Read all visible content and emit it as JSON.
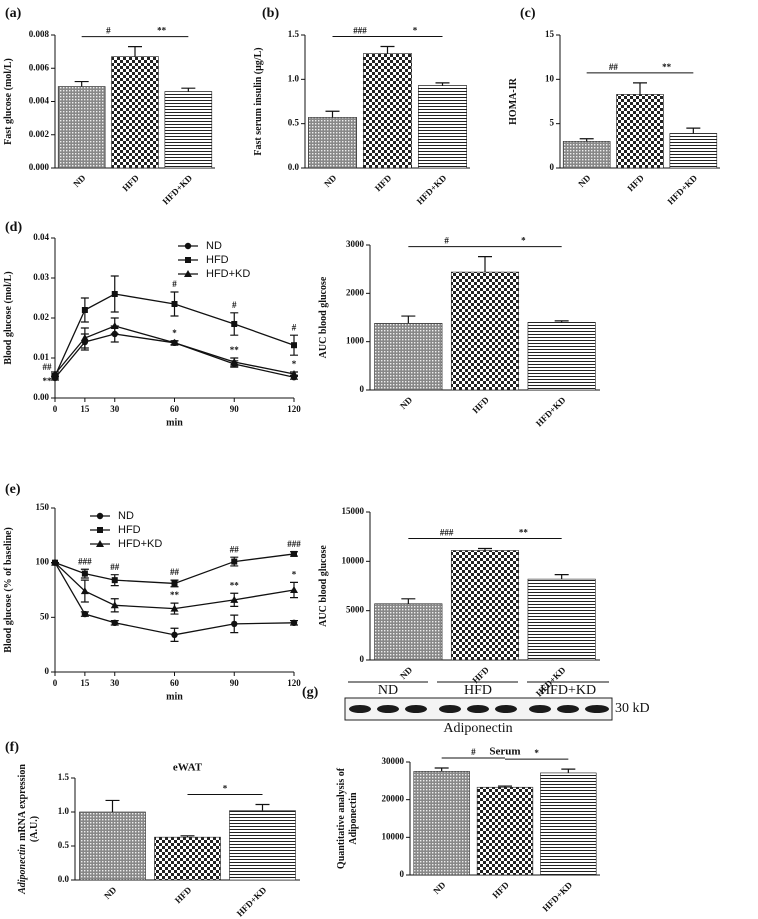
{
  "bar_patterns": [
    "grid",
    "checker",
    "hlines"
  ],
  "blot": {
    "panel": "(g)",
    "groups": [
      "ND",
      "HFD",
      "HFD+KD"
    ],
    "protein": "Adiponectin",
    "size": "30 kD"
  },
  "chart_data": [
    {
      "type": "bar",
      "panel": "(a)",
      "ylabel": [
        "Fast glucose (mol/L)"
      ],
      "categories": [
        "ND",
        "HFD",
        "HFD+KD"
      ],
      "values": [
        0.0049,
        0.0067,
        0.0046
      ],
      "errors": [
        0.0003,
        0.0006,
        0.0002
      ],
      "ylim": [
        0,
        0.008
      ],
      "yticks": [
        {
          "value": 0,
          "label": "0.000"
        },
        {
          "value": 0.002,
          "label": "0.002"
        },
        {
          "value": 0.004,
          "label": "0.004"
        },
        {
          "value": 0.006,
          "label": "0.006"
        },
        {
          "value": 0.008,
          "label": "0.008"
        }
      ],
      "significance": [
        {
          "label": "#",
          "pair": [
            0,
            1
          ]
        },
        {
          "label": "**",
          "pair": [
            1,
            2
          ]
        }
      ]
    },
    {
      "type": "bar",
      "panel": "(b)",
      "ylabel": [
        "Fast serum insulin (μg/L)"
      ],
      "categories": [
        "ND",
        "HFD",
        "HFD+KD"
      ],
      "values": [
        0.57,
        1.29,
        0.93
      ],
      "errors": [
        0.07,
        0.08,
        0.03
      ],
      "ylim": [
        0,
        1.5
      ],
      "yticks": [
        {
          "value": 0,
          "label": "0.0"
        },
        0.5,
        {
          "value": 1,
          "label": "1.0"
        },
        1.5
      ],
      "significance": [
        {
          "label": "###",
          "pair": [
            0,
            1
          ]
        },
        {
          "label": "*",
          "pair": [
            1,
            2
          ]
        }
      ]
    },
    {
      "type": "bar",
      "panel": "(c)",
      "ylabel": [
        "HOMA-IR"
      ],
      "categories": [
        "ND",
        "HFD",
        "HFD+KD"
      ],
      "values": [
        3.0,
        8.3,
        3.9
      ],
      "errors": [
        0.3,
        1.3,
        0.6
      ],
      "ylim": [
        0,
        15
      ],
      "yticks": [
        0,
        5,
        10,
        15
      ],
      "significance": [
        {
          "label": "##",
          "pair": [
            0,
            1
          ]
        },
        {
          "label": "**",
          "pair": [
            1,
            2
          ]
        }
      ]
    },
    {
      "type": "line",
      "panel": "(d)",
      "ylabel": [
        "Blood glucose (mol/L)"
      ],
      "xlabel": "min",
      "x": [
        0,
        15,
        30,
        60,
        90,
        120
      ],
      "xlim": [
        0,
        120
      ],
      "xticks": [
        0,
        15,
        30,
        60,
        90,
        120
      ],
      "ylim": [
        0,
        0.04
      ],
      "yticks": [
        {
          "value": 0,
          "label": "0.00"
        },
        0.01,
        0.02,
        0.03,
        0.04
      ],
      "legend": "upper right",
      "series": [
        {
          "name": "ND",
          "marker": "circle",
          "color": "#111111",
          "values": [
            0.005,
            0.014,
            0.016,
            0.0138,
            0.0085,
            0.0052
          ],
          "errors": [
            0.0005,
            0.002,
            0.002,
            0.0005,
            0.0008,
            0.0005
          ]
        },
        {
          "name": "HFD",
          "marker": "square",
          "color": "#111111",
          "values": [
            0.0055,
            0.022,
            0.026,
            0.0235,
            0.0185,
            0.0132
          ],
          "errors": [
            0.0005,
            0.003,
            0.0045,
            0.003,
            0.0028,
            0.0025
          ]
        },
        {
          "name": "HFD+KD",
          "marker": "triangle",
          "color": "#111111",
          "values": [
            0.006,
            0.015,
            0.018,
            0.0138,
            0.009,
            0.006
          ],
          "errors": [
            0.0005,
            0.0025,
            0.002,
            0.0005,
            0.001,
            0.0005
          ]
        }
      ],
      "annotations": [
        {
          "label": "##",
          "at": 0,
          "series": 1
        },
        {
          "label": "**",
          "at": 0,
          "series": 0
        },
        {
          "label": "#",
          "at": 3,
          "series": 1
        },
        {
          "label": "#",
          "at": 4,
          "series": 1
        },
        {
          "label": "#",
          "at": 5,
          "series": 1
        },
        {
          "label": "*",
          "at": 3,
          "series": 2
        },
        {
          "label": "**",
          "at": 4,
          "series": 2
        },
        {
          "label": "*",
          "at": 5,
          "series": 2
        }
      ]
    },
    {
      "type": "bar",
      "ylabel": [
        "AUC blood glucose"
      ],
      "categories": [
        "ND",
        "HFD",
        "HFD+KD"
      ],
      "values": [
        1380,
        2440,
        1400
      ],
      "errors": [
        150,
        320,
        30
      ],
      "ylim": [
        0,
        3000
      ],
      "yticks": [
        0,
        1000,
        2000,
        3000
      ],
      "significance": [
        {
          "label": "#",
          "pair": [
            0,
            1
          ]
        },
        {
          "label": "*",
          "pair": [
            1,
            2
          ]
        }
      ]
    },
    {
      "type": "line",
      "panel": "(e)",
      "ylabel": [
        "Blood glucose (% of baseline)"
      ],
      "xlabel": "min",
      "x": [
        0,
        15,
        30,
        60,
        90,
        120
      ],
      "xlim": [
        0,
        120
      ],
      "xticks": [
        0,
        15,
        30,
        60,
        90,
        120
      ],
      "ylim": [
        0,
        150
      ],
      "yticks": [
        0,
        50,
        100,
        150
      ],
      "legend": "upper left",
      "series": [
        {
          "name": "ND",
          "marker": "circle",
          "color": "#111111",
          "values": [
            100,
            53,
            45,
            34,
            44,
            45
          ],
          "errors": [
            0,
            2,
            2,
            6,
            8,
            2
          ]
        },
        {
          "name": "HFD",
          "marker": "square",
          "color": "#111111",
          "values": [
            100,
            90,
            84,
            81,
            101,
            108
          ],
          "errors": [
            0,
            4,
            5,
            3,
            4,
            2
          ]
        },
        {
          "name": "HFD+KD",
          "marker": "triangle",
          "color": "#111111",
          "values": [
            100,
            74,
            61,
            58,
            66,
            75
          ],
          "errors": [
            0,
            10,
            6,
            5,
            6,
            7
          ]
        }
      ],
      "annotations": [
        {
          "label": "###",
          "at": 1,
          "series": 1
        },
        {
          "label": "##",
          "at": 2,
          "series": 1
        },
        {
          "label": "##",
          "at": 3,
          "series": 1
        },
        {
          "label": "##",
          "at": 4,
          "series": 1
        },
        {
          "label": "###",
          "at": 5,
          "series": 1
        },
        {
          "label": "**",
          "at": 3,
          "series": 2
        },
        {
          "label": "**",
          "at": 4,
          "series": 2
        },
        {
          "label": "*",
          "at": 5,
          "series": 2
        }
      ]
    },
    {
      "type": "bar",
      "ylabel": [
        "AUC blood glucose"
      ],
      "categories": [
        "ND",
        "HFD",
        "HFD+KD"
      ],
      "values": [
        5700,
        11100,
        8200
      ],
      "errors": [
        500,
        200,
        450
      ],
      "ylim": [
        0,
        15000
      ],
      "yticks": [
        0,
        5000,
        10000,
        15000
      ],
      "significance": [
        {
          "label": "###",
          "pair": [
            0,
            1
          ]
        },
        {
          "label": "**",
          "pair": [
            1,
            2
          ]
        }
      ]
    },
    {
      "type": "bar",
      "panel": "(f)",
      "title": "eWAT",
      "ylabel_italic": "Adiponectin",
      "ylabel": [
        "mRNA expression",
        "(A.U.)"
      ],
      "categories": [
        "ND",
        "HFD",
        "HFD+KD"
      ],
      "values": [
        1.0,
        0.63,
        1.02
      ],
      "errors": [
        0.17,
        0.02,
        0.09
      ],
      "ylim": [
        0,
        1.5
      ],
      "yticks": [
        {
          "value": 0,
          "label": "0.0"
        },
        0.5,
        {
          "value": 1,
          "label": "1.0"
        },
        1.5
      ],
      "significance": [
        {
          "label": "*",
          "pair": [
            1,
            2
          ]
        }
      ]
    },
    {
      "type": "bar",
      "title": "Serum",
      "ylabel": [
        "Quantitative analysis of",
        "Adiponectin"
      ],
      "categories": [
        "ND",
        "HFD",
        "HFD+KD"
      ],
      "values": [
        27500,
        23300,
        27100
      ],
      "errors": [
        900,
        300,
        1000
      ],
      "ylim": [
        0,
        30000
      ],
      "yticks": [
        0,
        10000,
        20000,
        30000
      ],
      "significance": [
        {
          "label": "#",
          "pair": [
            0,
            1
          ]
        },
        {
          "label": "*",
          "pair": [
            1,
            2
          ]
        }
      ]
    }
  ]
}
